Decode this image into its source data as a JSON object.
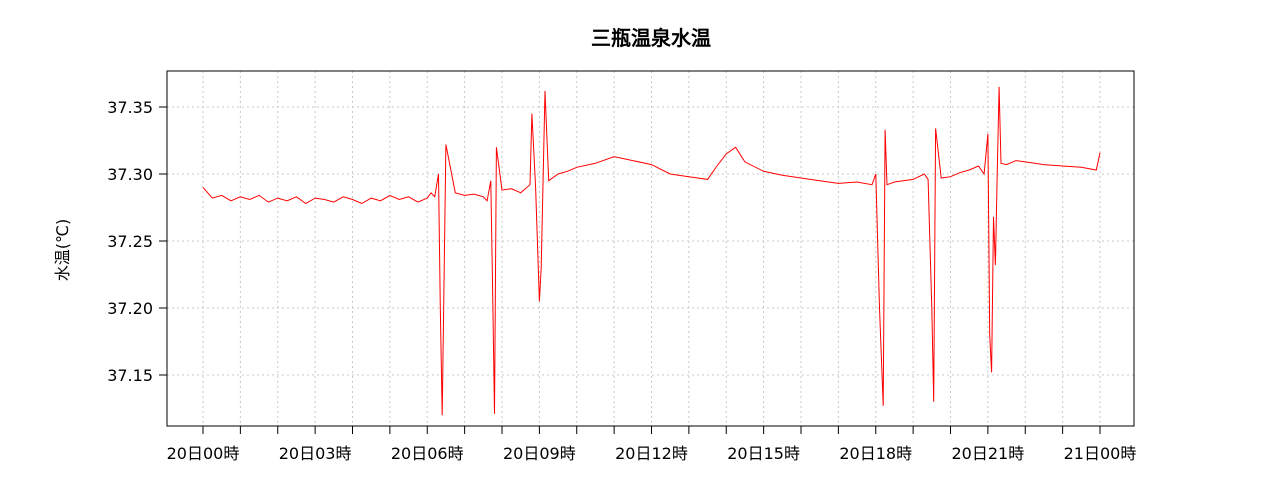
{
  "chart_data": {
    "type": "line",
    "title": "三瓶温泉水温",
    "ylabel": "水温(℃)",
    "xlabel": "",
    "xlim": [
      0,
      24
    ],
    "ylim": [
      37.11,
      37.375
    ],
    "y_ticks": [
      {
        "value": 37.15,
        "label": "37.15"
      },
      {
        "value": 37.2,
        "label": "37.20"
      },
      {
        "value": 37.25,
        "label": "37.25"
      },
      {
        "value": 37.3,
        "label": "37.30"
      },
      {
        "value": 37.35,
        "label": "37.35"
      }
    ],
    "x_ticks": [
      {
        "value": 0,
        "label": "20日00時"
      },
      {
        "value": 3,
        "label": "20日03時"
      },
      {
        "value": 6,
        "label": "20日06時"
      },
      {
        "value": 9,
        "label": "20日09時"
      },
      {
        "value": 12,
        "label": "20日12時"
      },
      {
        "value": 15,
        "label": "20日15時"
      },
      {
        "value": 18,
        "label": "20日18時"
      },
      {
        "value": 21,
        "label": "20日21時"
      },
      {
        "value": 24,
        "label": "21日00時"
      }
    ],
    "x_minor_ticks": [
      0,
      1,
      2,
      3,
      4,
      5,
      6,
      7,
      8,
      9,
      10,
      11,
      12,
      13,
      14,
      15,
      16,
      17,
      18,
      19,
      20,
      21,
      22,
      23,
      24
    ],
    "grid": true,
    "series": [
      {
        "color": "#ff0000",
        "x": [
          0.0,
          0.25,
          0.5,
          0.75,
          1.0,
          1.25,
          1.5,
          1.75,
          2.0,
          2.25,
          2.5,
          2.75,
          3.0,
          3.25,
          3.5,
          3.75,
          4.0,
          4.25,
          4.5,
          4.75,
          5.0,
          5.25,
          5.5,
          5.75,
          6.0,
          6.1,
          6.2,
          6.3,
          6.35,
          6.4,
          6.5,
          6.75,
          7.0,
          7.25,
          7.5,
          7.6,
          7.7,
          7.75,
          7.8,
          7.85,
          8.0,
          8.25,
          8.5,
          8.75,
          8.8,
          8.9,
          9.0,
          9.05,
          9.15,
          9.25,
          9.5,
          9.75,
          10.0,
          10.5,
          11.0,
          11.5,
          12.0,
          12.5,
          13.0,
          13.5,
          13.75,
          14.0,
          14.25,
          14.5,
          15.0,
          15.5,
          16.0,
          16.5,
          17.0,
          17.5,
          17.9,
          18.0,
          18.1,
          18.2,
          18.25,
          18.3,
          18.5,
          19.0,
          19.3,
          19.4,
          19.5,
          19.55,
          19.6,
          19.75,
          20.0,
          20.25,
          20.5,
          20.75,
          20.9,
          21.0,
          21.05,
          21.1,
          21.15,
          21.2,
          21.25,
          21.3,
          21.35,
          21.5,
          21.75,
          22.0,
          22.5,
          23.0,
          23.5,
          23.9,
          24.0
        ],
        "y": [
          37.29,
          37.282,
          37.284,
          37.28,
          37.283,
          37.281,
          37.284,
          37.279,
          37.282,
          37.28,
          37.283,
          37.278,
          37.282,
          37.281,
          37.279,
          37.283,
          37.281,
          37.278,
          37.282,
          37.28,
          37.284,
          37.281,
          37.283,
          37.279,
          37.282,
          37.286,
          37.283,
          37.3,
          37.2,
          37.12,
          37.322,
          37.286,
          37.284,
          37.285,
          37.283,
          37.28,
          37.295,
          37.21,
          37.121,
          37.32,
          37.288,
          37.289,
          37.286,
          37.292,
          37.345,
          37.29,
          37.205,
          37.23,
          37.362,
          37.295,
          37.3,
          37.302,
          37.305,
          37.308,
          37.313,
          37.31,
          37.307,
          37.3,
          37.298,
          37.296,
          37.306,
          37.315,
          37.32,
          37.309,
          37.302,
          37.299,
          37.297,
          37.295,
          37.293,
          37.294,
          37.292,
          37.3,
          37.2,
          37.127,
          37.333,
          37.292,
          37.294,
          37.296,
          37.3,
          37.296,
          37.2,
          37.13,
          37.334,
          37.297,
          37.298,
          37.301,
          37.303,
          37.306,
          37.3,
          37.33,
          37.18,
          37.152,
          37.268,
          37.232,
          37.3,
          37.365,
          37.308,
          37.307,
          37.31,
          37.309,
          37.307,
          37.306,
          37.305,
          37.303,
          37.316
        ]
      }
    ]
  }
}
